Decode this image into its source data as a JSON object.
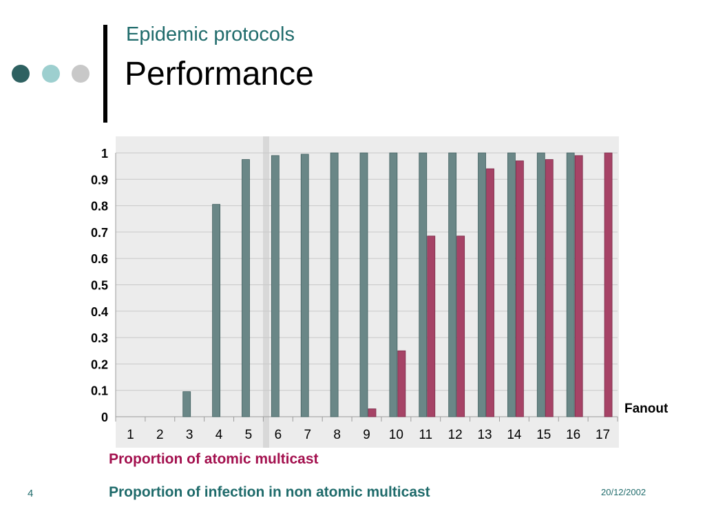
{
  "slide": {
    "subtitle": "Epidemic protocols",
    "title": "Performance",
    "slide_number": "4",
    "date": "20/12/2002",
    "decor_dot_colors": [
      "#2e6161",
      "#9dcfcf",
      "#c8c8c8"
    ]
  },
  "legend": {
    "atomic": "Proportion of atomic multicast",
    "infection": "Proportion of infection in non atomic multicast"
  },
  "colors": {
    "atomic": "#a64366",
    "infection": "#6a8787",
    "plot_bg": "#ececec",
    "text_teal": "#1f6b6b",
    "text_red": "#a3104e"
  },
  "chart_data": {
    "type": "bar",
    "xlabel": "Fanout",
    "ylabel": "",
    "ylim": [
      0,
      1
    ],
    "y_ticks": [
      "0",
      "0.1",
      "0.2",
      "0.3",
      "0.4",
      "0.5",
      "0.6",
      "0.7",
      "0.8",
      "0.9",
      "1"
    ],
    "grid": true,
    "categories": [
      "1",
      "2",
      "3",
      "4",
      "5",
      "6",
      "7",
      "8",
      "9",
      "10",
      "11",
      "12",
      "13",
      "14",
      "15",
      "16",
      "17"
    ],
    "series": [
      {
        "name": "Proportion of infection in non atomic multicast",
        "values": [
          0,
          0,
          0.095,
          0.805,
          0.975,
          0.99,
          0.995,
          1,
          1,
          1,
          1,
          1,
          1,
          1,
          1,
          1,
          null
        ]
      },
      {
        "name": "Proportion of atomic multicast",
        "values": [
          0,
          0,
          0,
          0,
          0,
          0,
          0,
          0,
          0.03,
          0.25,
          0.685,
          0.685,
          0.94,
          0.97,
          0.975,
          0.99,
          1
        ]
      }
    ]
  }
}
